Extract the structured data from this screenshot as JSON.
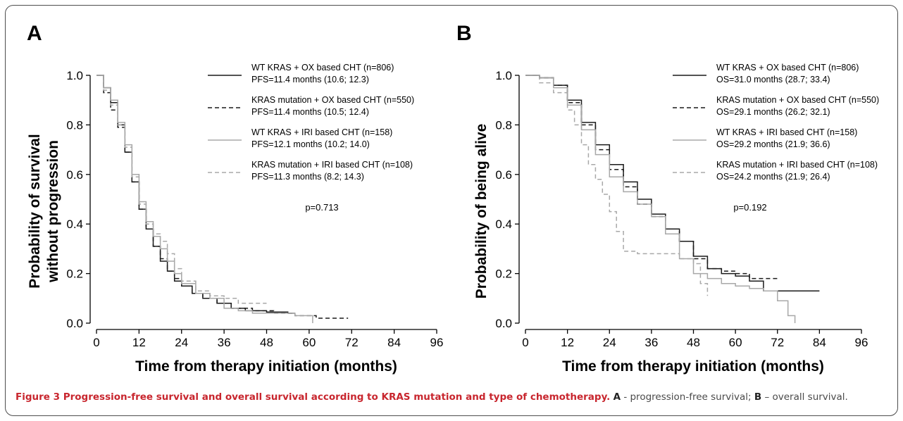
{
  "figure": {
    "caption_label": "Figure 3",
    "caption_title": "Progression-free survival and overall survival according to KRAS mutation and type of chemotherapy.",
    "caption_a_letter": "A",
    "caption_a_text": "- progression-free survival;",
    "caption_b_letter": "B",
    "caption_b_text": "– overall survival."
  },
  "colors": {
    "black": "#1a1a1a",
    "gray": "#a8a8a8",
    "caption_accent": "#c8262e"
  },
  "chart_data": [
    {
      "type": "line",
      "panel": "A",
      "xlabel": "Time from therapy initiation (months)",
      "ylabel_lines": [
        "Probability of survival",
        "without progression"
      ],
      "xlim": [
        0,
        96
      ],
      "ylim": [
        0,
        1.0
      ],
      "xticks": [
        "0",
        "12",
        "24",
        "36",
        "48",
        "60",
        "72",
        "84",
        "96"
      ],
      "yticks": [
        "0.0",
        "0.2",
        "0.4",
        "0.6",
        "0.8",
        "1.0"
      ],
      "pvalue": "p=0.713",
      "series": [
        {
          "legend_line1": "WT KRAS + OX based CHT (n=806)",
          "legend_line2": "PFS=11.4 months (10.6; 12.3)",
          "color": "#1a1a1a",
          "dash": "solid",
          "points": [
            [
              0,
              1.0
            ],
            [
              2,
              0.95
            ],
            [
              4,
              0.89
            ],
            [
              6,
              0.8
            ],
            [
              8,
              0.69
            ],
            [
              10,
              0.57
            ],
            [
              12,
              0.46
            ],
            [
              14,
              0.38
            ],
            [
              16,
              0.31
            ],
            [
              18,
              0.25
            ],
            [
              20,
              0.21
            ],
            [
              22,
              0.17
            ],
            [
              24,
              0.15
            ],
            [
              27,
              0.12
            ],
            [
              30,
              0.1
            ],
            [
              34,
              0.08
            ],
            [
              38,
              0.06
            ],
            [
              42,
              0.05
            ],
            [
              48,
              0.045
            ],
            [
              54,
              0.04
            ],
            [
              56,
              0.04
            ]
          ]
        },
        {
          "legend_line1": "KRAS mutation + OX based CHT (n=550)",
          "legend_line2": "PFS=11.4 months (10.5; 12.4)",
          "color": "#1a1a1a",
          "dash": "dashed",
          "points": [
            [
              0,
              1.0
            ],
            [
              2,
              0.93
            ],
            [
              4,
              0.86
            ],
            [
              6,
              0.79
            ],
            [
              8,
              0.69
            ],
            [
              10,
              0.57
            ],
            [
              12,
              0.46
            ],
            [
              14,
              0.38
            ],
            [
              16,
              0.31
            ],
            [
              18,
              0.26
            ],
            [
              20,
              0.21
            ],
            [
              22,
              0.18
            ],
            [
              24,
              0.15
            ],
            [
              27,
              0.12
            ],
            [
              30,
              0.1
            ],
            [
              34,
              0.08
            ],
            [
              38,
              0.06
            ],
            [
              44,
              0.05
            ],
            [
              50,
              0.04
            ],
            [
              56,
              0.03
            ],
            [
              62,
              0.02
            ],
            [
              71,
              0.02
            ]
          ]
        },
        {
          "legend_line1": "WT KRAS + IRI based CHT (n=158)",
          "legend_line2": "PFS=12.1 months (10.2; 14.0)",
          "color": "#a8a8a8",
          "dash": "solid",
          "points": [
            [
              0,
              1.0
            ],
            [
              2,
              0.95
            ],
            [
              4,
              0.9
            ],
            [
              6,
              0.81
            ],
            [
              8,
              0.72
            ],
            [
              10,
              0.6
            ],
            [
              12,
              0.49
            ],
            [
              14,
              0.41
            ],
            [
              16,
              0.35
            ],
            [
              18,
              0.3
            ],
            [
              20,
              0.25
            ],
            [
              22,
              0.2
            ],
            [
              24,
              0.16
            ],
            [
              28,
              0.12
            ],
            [
              32,
              0.1
            ],
            [
              36,
              0.06
            ],
            [
              40,
              0.05
            ],
            [
              44,
              0.04
            ],
            [
              50,
              0.04
            ],
            [
              56,
              0.03
            ],
            [
              61,
              0.0
            ]
          ]
        },
        {
          "legend_line1": "KRAS mutation + IRI based CHT (n=108)",
          "legend_line2": "PFS=11.3 months (8.2; 14.3)",
          "color": "#a8a8a8",
          "dash": "dashed",
          "points": [
            [
              0,
              1.0
            ],
            [
              2,
              0.94
            ],
            [
              4,
              0.88
            ],
            [
              6,
              0.8
            ],
            [
              8,
              0.71
            ],
            [
              10,
              0.59
            ],
            [
              12,
              0.48
            ],
            [
              14,
              0.4
            ],
            [
              16,
              0.36
            ],
            [
              18,
              0.33
            ],
            [
              20,
              0.28
            ],
            [
              22,
              0.22
            ],
            [
              24,
              0.17
            ],
            [
              28,
              0.13
            ],
            [
              32,
              0.11
            ],
            [
              36,
              0.1
            ],
            [
              40,
              0.08
            ],
            [
              44,
              0.08
            ],
            [
              48,
              0.08
            ]
          ]
        }
      ]
    },
    {
      "type": "line",
      "panel": "B",
      "xlabel": "Time from therapy initiation (months)",
      "ylabel_lines": [
        "Probability of being alive"
      ],
      "xlim": [
        0,
        96
      ],
      "ylim": [
        0,
        1.0
      ],
      "xticks": [
        "0",
        "12",
        "24",
        "36",
        "48",
        "60",
        "72",
        "84",
        "96"
      ],
      "yticks": [
        "0.0",
        "0.2",
        "0.4",
        "0.6",
        "0.8",
        "1.0"
      ],
      "pvalue": "p=0.192",
      "series": [
        {
          "legend_line1": "WT KRAS + OX based CHT (n=806)",
          "legend_line2": "OS=31.0 months (28.7; 33.4)",
          "color": "#1a1a1a",
          "dash": "solid",
          "points": [
            [
              0,
              1.0
            ],
            [
              4,
              0.99
            ],
            [
              8,
              0.96
            ],
            [
              12,
              0.9
            ],
            [
              16,
              0.81
            ],
            [
              20,
              0.72
            ],
            [
              24,
              0.64
            ],
            [
              28,
              0.57
            ],
            [
              32,
              0.5
            ],
            [
              36,
              0.44
            ],
            [
              40,
              0.38
            ],
            [
              44,
              0.33
            ],
            [
              48,
              0.27
            ],
            [
              52,
              0.22
            ],
            [
              56,
              0.2
            ],
            [
              60,
              0.19
            ],
            [
              64,
              0.17
            ],
            [
              68,
              0.13
            ],
            [
              72,
              0.13
            ],
            [
              84,
              0.13
            ]
          ]
        },
        {
          "legend_line1": "KRAS mutation + OX based CHT (n=550)",
          "legend_line2": "OS=29.1 months (26.2; 32.1)",
          "color": "#1a1a1a",
          "dash": "dashed",
          "points": [
            [
              0,
              1.0
            ],
            [
              4,
              0.99
            ],
            [
              8,
              0.96
            ],
            [
              12,
              0.89
            ],
            [
              16,
              0.8
            ],
            [
              20,
              0.7
            ],
            [
              24,
              0.62
            ],
            [
              28,
              0.55
            ],
            [
              32,
              0.48
            ],
            [
              36,
              0.43
            ],
            [
              40,
              0.38
            ],
            [
              44,
              0.33
            ],
            [
              48,
              0.26
            ],
            [
              52,
              0.22
            ],
            [
              56,
              0.21
            ],
            [
              60,
              0.2
            ],
            [
              64,
              0.18
            ],
            [
              72,
              0.17
            ]
          ]
        },
        {
          "legend_line1": "WT KRAS + IRI based CHT (n=158)",
          "legend_line2": "OS=29.2 months (21.9; 36.6)",
          "color": "#a8a8a8",
          "dash": "solid",
          "points": [
            [
              0,
              1.0
            ],
            [
              4,
              0.99
            ],
            [
              8,
              0.95
            ],
            [
              12,
              0.88
            ],
            [
              16,
              0.78
            ],
            [
              20,
              0.68
            ],
            [
              24,
              0.59
            ],
            [
              28,
              0.53
            ],
            [
              32,
              0.48
            ],
            [
              36,
              0.43
            ],
            [
              40,
              0.36
            ],
            [
              44,
              0.26
            ],
            [
              48,
              0.2
            ],
            [
              52,
              0.18
            ],
            [
              56,
              0.16
            ],
            [
              60,
              0.15
            ],
            [
              64,
              0.14
            ],
            [
              68,
              0.13
            ],
            [
              72,
              0.09
            ],
            [
              75,
              0.03
            ],
            [
              77,
              0.0
            ]
          ]
        },
        {
          "legend_line1": "KRAS mutation + IRI based CHT (n=108)",
          "legend_line2": "OS=24.2 months (21.9; 26.4)",
          "color": "#a8a8a8",
          "dash": "dashed",
          "points": [
            [
              0,
              1.0
            ],
            [
              4,
              0.97
            ],
            [
              8,
              0.93
            ],
            [
              12,
              0.86
            ],
            [
              14,
              0.8
            ],
            [
              16,
              0.72
            ],
            [
              18,
              0.64
            ],
            [
              20,
              0.58
            ],
            [
              22,
              0.52
            ],
            [
              24,
              0.45
            ],
            [
              26,
              0.37
            ],
            [
              28,
              0.29
            ],
            [
              32,
              0.28
            ],
            [
              36,
              0.28
            ],
            [
              40,
              0.28
            ],
            [
              44,
              0.26
            ],
            [
              48,
              0.24
            ],
            [
              50,
              0.16
            ],
            [
              52,
              0.11
            ]
          ]
        }
      ]
    }
  ]
}
